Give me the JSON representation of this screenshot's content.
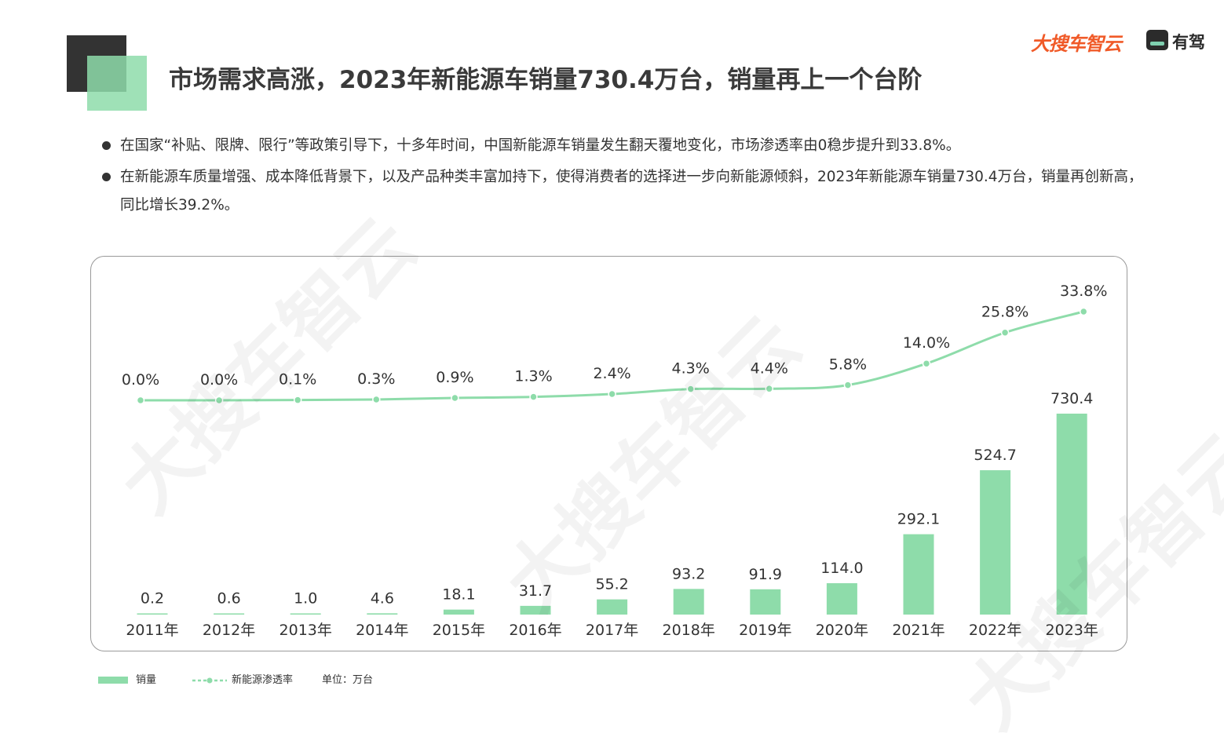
{
  "header": {
    "title": "市场需求高涨，2023年新能源车销量730.4万台，销量再上一个台阶",
    "logo_primary": "大搜车智云",
    "logo_secondary": "有驾"
  },
  "bullets": [
    "在国家“补贴、限牌、限行”等政策引导下，十多年时间，中国新能源车销量发生翻天覆地变化，市场渗透率由0稳步提升到33.8%。",
    "在新能源车质量增强、成本降低背景下，以及产品种类丰富加持下，使得消费者的选择进一步向新能源倾斜，2023年新能源车销量730.4万台，销量再创新高，同比增长39.2%。"
  ],
  "watermark": "大搜车智云",
  "colors": {
    "bar": "#8edcaa",
    "line": "#8edcaa",
    "text": "#333333"
  },
  "legend": {
    "bar_label": "销量",
    "line_label": "新能源渗透率",
    "unit": "单位：万台"
  },
  "chart_data": {
    "type": "bar",
    "categories": [
      "2011年",
      "2012年",
      "2013年",
      "2014年",
      "2015年",
      "2016年",
      "2017年",
      "2018年",
      "2019年",
      "2020年",
      "2021年",
      "2022年",
      "2023年"
    ],
    "series": [
      {
        "name": "销量",
        "type": "bar",
        "values": [
          0.2,
          0.6,
          1.0,
          4.6,
          18.1,
          31.7,
          55.2,
          93.2,
          91.9,
          114.0,
          292.1,
          524.7,
          730.4
        ],
        "labels": [
          "0.2",
          "0.6",
          "1.0",
          "4.6",
          "18.1",
          "31.7",
          "55.2",
          "93.2",
          "91.9",
          "114.0",
          "292.1",
          "524.7",
          "730.4"
        ]
      },
      {
        "name": "新能源渗透率",
        "type": "line",
        "values": [
          0.0,
          0.0,
          0.1,
          0.3,
          0.9,
          1.3,
          2.4,
          4.3,
          4.4,
          5.8,
          14.0,
          25.8,
          33.8
        ],
        "labels": [
          "0.0%",
          "0.0%",
          "0.1%",
          "0.3%",
          "0.9%",
          "1.3%",
          "2.4%",
          "4.3%",
          "4.4%",
          "5.8%",
          "14.0%",
          "25.8%",
          "33.8%"
        ]
      }
    ],
    "bar_max": 730.4,
    "line_max": 33.8,
    "legend_position": "bottom-left",
    "grid": false
  }
}
